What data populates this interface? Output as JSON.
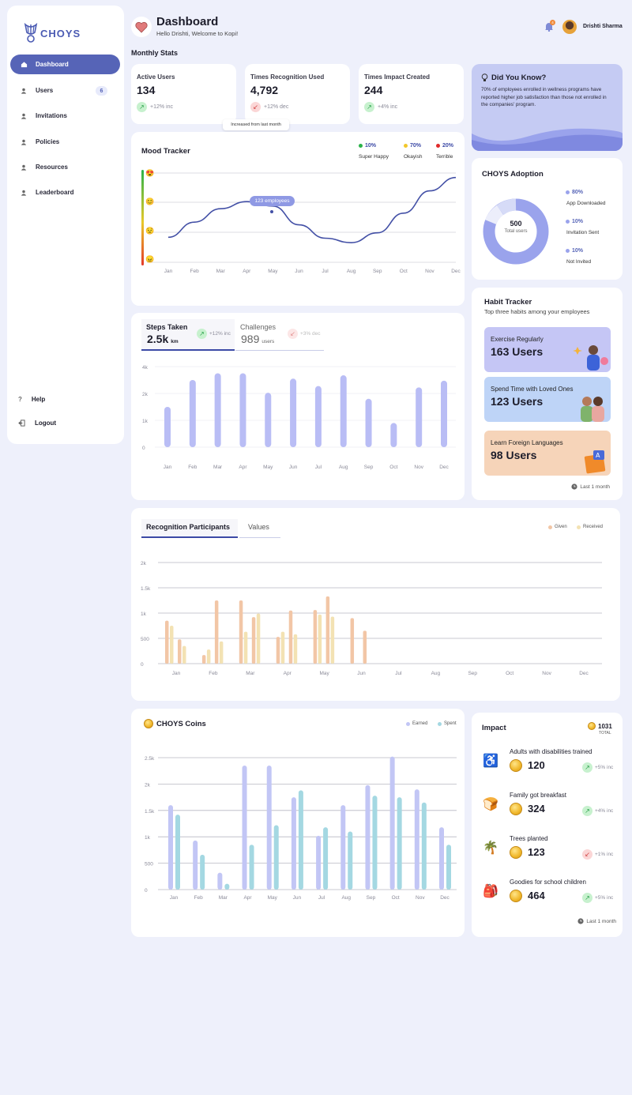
{
  "app": {
    "name": "CHOYS"
  },
  "sidebar": {
    "items": [
      {
        "label": "Dashboard",
        "icon": "home-icon",
        "active": true
      },
      {
        "label": "Users",
        "icon": "user-icon",
        "badge": "6"
      },
      {
        "label": "Invitations",
        "icon": "user-icon"
      },
      {
        "label": "Policies",
        "icon": "user-icon"
      },
      {
        "label": "Resources",
        "icon": "user-icon"
      },
      {
        "label": "Leaderboard",
        "icon": "user-icon"
      }
    ],
    "footer": [
      {
        "label": "Help",
        "icon": "help-icon"
      },
      {
        "label": "Logout",
        "icon": "logout-icon"
      }
    ]
  },
  "header": {
    "title": "Dashboard",
    "subtitle": "Hello Drishti, Welcome to Kopi!",
    "user_name": "Drishti Sharma",
    "notification_count": "4"
  },
  "monthly_stats": {
    "title": "Monthly Stats",
    "tooltip": "Increased from last month",
    "cards": [
      {
        "title": "Active Users",
        "value": "134",
        "trend": "+12% inc",
        "direction": "up"
      },
      {
        "title": "Times Recognition Used",
        "value": "4,792",
        "trend": "+12% dec",
        "direction": "down"
      },
      {
        "title": "Times Impact Created",
        "value": "244",
        "trend": "+4% inc",
        "direction": "up"
      }
    ]
  },
  "did_you_know": {
    "title": "Did You Know?",
    "text": "70% of employees enrolled in wellness programs have reported higher job satisfaction than those not enrolled in the companies' program."
  },
  "mood_tracker": {
    "title": "Mood Tracker",
    "legend": [
      {
        "value": "10%",
        "label": "Super Happy",
        "color": "#2bb34a"
      },
      {
        "value": "70%",
        "label": "Okayish",
        "color": "#f2c72a"
      },
      {
        "value": "20%",
        "label": "Terrible",
        "color": "#e02a2a"
      }
    ],
    "tooltip": "123 employees"
  },
  "adoption": {
    "title": "CHOYS Adoption",
    "center_value": "500",
    "center_label": "Total users",
    "legend": [
      {
        "value": "80%",
        "label": "App Downloaded"
      },
      {
        "value": "10%",
        "label": "Invitation Sent"
      },
      {
        "value": "10%",
        "label": "Not Invited"
      }
    ]
  },
  "steps": {
    "tabs": [
      {
        "label": "Steps Taken",
        "value": "2.5k",
        "unit": "km",
        "trend": "+12% inc"
      },
      {
        "label": "Challenges",
        "value": "989",
        "unit": "users",
        "trend": "+3% dec"
      }
    ]
  },
  "habit_tracker": {
    "title": "Habit Tracker",
    "subtitle": "Top three habits among your employees",
    "items": [
      {
        "label": "Exercise Regularly",
        "value": "163 Users"
      },
      {
        "label": "Spend Time with Loved Ones",
        "value": "123 Users"
      },
      {
        "label": "Learn Foreign Languages",
        "value": "98 Users"
      }
    ],
    "footer": "Last 1 month"
  },
  "recognition": {
    "tabs": [
      "Recognition Participants",
      "Values"
    ],
    "legend": [
      "Given",
      "Received"
    ]
  },
  "coins": {
    "title": "CHOYS Coins",
    "legend": [
      "Earned",
      "Spent"
    ]
  },
  "impact": {
    "title": "Impact",
    "total_value": "1031",
    "total_label": "TOTAL",
    "items": [
      {
        "label": "Adults with disabilities trained",
        "value": "120",
        "trend": "+5% inc",
        "direction": "up"
      },
      {
        "label": "Family got breakfast",
        "value": "324",
        "trend": "+4% inc",
        "direction": "up"
      },
      {
        "label": "Trees planted",
        "value": "123",
        "trend": "+1% inc",
        "direction": "down"
      },
      {
        "label": "Goodies for school children",
        "value": "464",
        "trend": "+5% inc",
        "direction": "up"
      }
    ],
    "footer": "Last 1 month"
  },
  "chart_data": [
    {
      "type": "line",
      "title": "Mood Tracker",
      "categories": [
        "Jan",
        "Feb",
        "Mar",
        "Apr",
        "May",
        "Jun",
        "Jul",
        "Aug",
        "Sep",
        "Oct",
        "Nov",
        "Dec"
      ],
      "values": [
        0.28,
        0.45,
        0.6,
        0.68,
        0.63,
        0.42,
        0.27,
        0.22,
        0.33,
        0.55,
        0.8,
        0.95
      ],
      "y_levels": [
        "Super Happy",
        "Happy",
        "Sad",
        "Terrible"
      ]
    },
    {
      "type": "bar",
      "title": "Steps Taken",
      "categories": [
        "Jan",
        "Feb",
        "Mar",
        "Apr",
        "May",
        "Jun",
        "Jul",
        "Aug",
        "Sep",
        "Oct",
        "Nov",
        "Dec"
      ],
      "values": [
        1.5,
        3.0,
        3.5,
        3.5,
        2.05,
        3.1,
        2.55,
        3.35,
        1.8,
        0.9,
        2.45,
        2.95
      ],
      "yticks": [
        "0",
        "1k",
        "2k",
        "4k"
      ],
      "ylim": [
        0,
        4
      ]
    },
    {
      "type": "bar",
      "title": "Recognition Participants",
      "categories": [
        "Jan",
        "Feb",
        "Mar",
        "Apr",
        "May",
        "Jun",
        "Jul",
        "Aug",
        "Sep",
        "Oct",
        "Nov",
        "Dec"
      ],
      "yticks": [
        "0",
        "500",
        "1k",
        "1.5k",
        "2k"
      ],
      "ylim": [
        0,
        2000
      ],
      "series": [
        {
          "name": "Given",
          "values": [
            [
              850,
              480
            ],
            [
              170,
              1250
            ],
            [
              1250,
              920
            ],
            [
              530,
              1050
            ],
            [
              1060,
              1330
            ],
            [
              900,
              650
            ],
            [
              0,
              0
            ],
            [
              0,
              0
            ],
            [
              0,
              0
            ],
            [
              0,
              0
            ],
            [
              0,
              0
            ],
            [
              0,
              0
            ]
          ]
        },
        {
          "name": "Received",
          "values": [
            [
              750,
              350
            ],
            [
              280,
              440
            ],
            [
              630,
              990
            ],
            [
              630,
              580
            ],
            [
              970,
              930
            ],
            [
              0,
              0
            ],
            [
              0,
              0
            ],
            [
              0,
              0
            ],
            [
              0,
              0
            ],
            [
              0,
              0
            ],
            [
              0,
              0
            ],
            [
              0,
              0
            ]
          ]
        }
      ]
    },
    {
      "type": "bar",
      "title": "CHOYS Coins",
      "categories": [
        "Jan",
        "Feb",
        "Mar",
        "Apr",
        "May",
        "Jun",
        "Jul",
        "Aug",
        "Sep",
        "Oct",
        "Nov",
        "Dec"
      ],
      "yticks": [
        "0",
        "500",
        "1k",
        "1.5k",
        "2k",
        "2.5k"
      ],
      "ylim": [
        0,
        2500
      ],
      "series": [
        {
          "name": "Earned",
          "values": [
            1600,
            930,
            320,
            2350,
            2350,
            1750,
            1020,
            1600,
            1980,
            2520,
            1900,
            1180
          ]
        },
        {
          "name": "Spent",
          "values": [
            1420,
            660,
            110,
            850,
            1220,
            1880,
            1180,
            1100,
            1780,
            1750,
            1650,
            850
          ]
        }
      ]
    }
  ]
}
